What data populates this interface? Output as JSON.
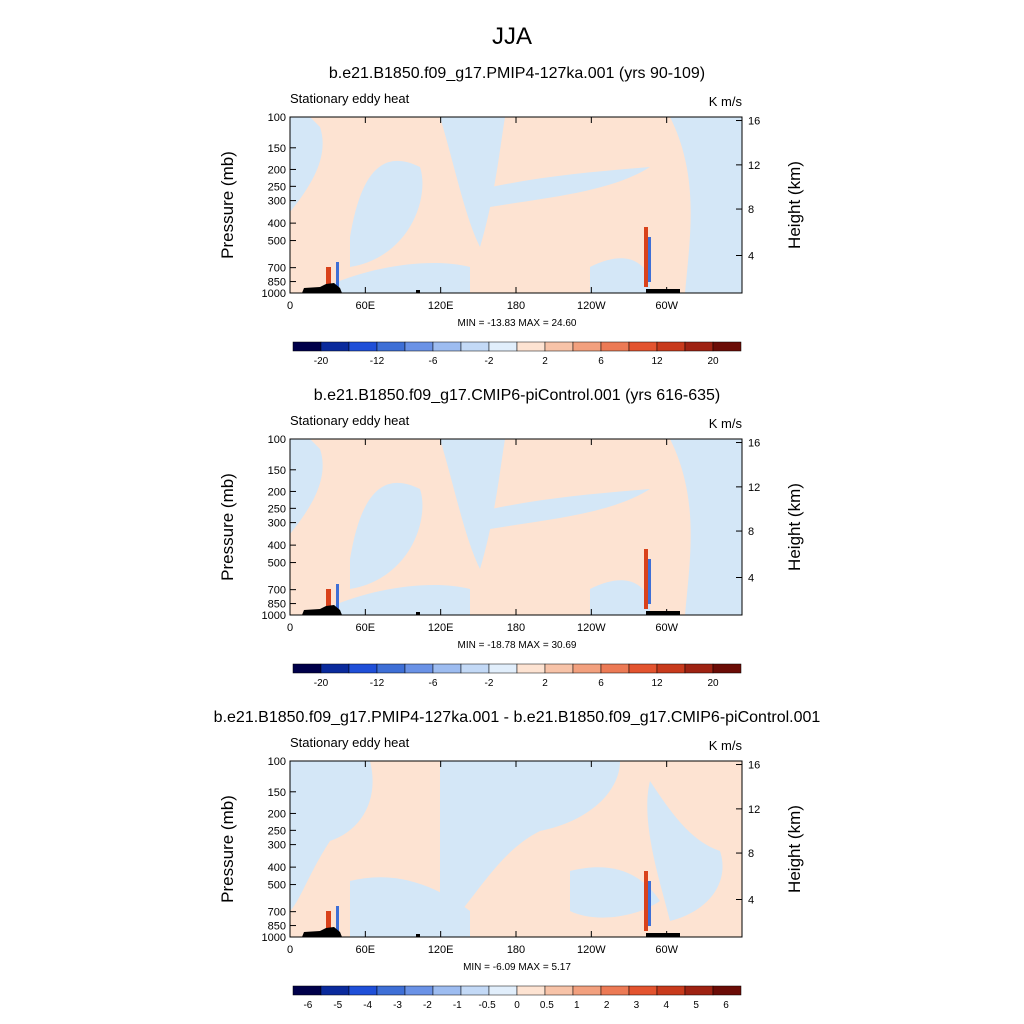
{
  "figure": {
    "title": "JJA"
  },
  "chart_data": [
    {
      "type": "heatmap",
      "title": "b.e21.B1850.f09_g17.PMIP4-127ka.001 (yrs 90-109)",
      "left_label": "Stationary eddy heat",
      "units": "K m/s",
      "ylabel": "Pressure (mb)",
      "ylabel_right": "Height (km)",
      "x_ticks": [
        "0",
        "60E",
        "120E",
        "180",
        "120W",
        "60W"
      ],
      "y_ticks": [
        "100",
        "150",
        "200",
        "250",
        "300",
        "400",
        "500",
        "700",
        "850",
        "1000"
      ],
      "y_ticks_right": [
        "4",
        "8",
        "12",
        "16"
      ],
      "stats": "MIN = -13.83  MAX =  24.60",
      "colorbar_labels": [
        "-20",
        "-12",
        "-6",
        "-2",
        "2",
        "6",
        "12",
        "20"
      ],
      "colors": {
        "background": "#fde3d2",
        "negative": "#d4e7f7",
        "positive_strong": "#d9421b",
        "negative_strong": "#3e6fd6",
        "terrain": "#000000"
      }
    },
    {
      "type": "heatmap",
      "title": "b.e21.B1850.f09_g17.CMIP6-piControl.001 (yrs 616-635)",
      "left_label": "Stationary eddy heat",
      "units": "K m/s",
      "ylabel": "Pressure (mb)",
      "ylabel_right": "Height (km)",
      "x_ticks": [
        "0",
        "60E",
        "120E",
        "180",
        "120W",
        "60W"
      ],
      "y_ticks": [
        "100",
        "150",
        "200",
        "250",
        "300",
        "400",
        "500",
        "700",
        "850",
        "1000"
      ],
      "y_ticks_right": [
        "4",
        "8",
        "12",
        "16"
      ],
      "stats": "MIN = -18.78  MAX =  30.69",
      "colorbar_labels": [
        "-20",
        "-12",
        "-6",
        "-2",
        "2",
        "6",
        "12",
        "20"
      ],
      "colors": {
        "background": "#fde3d2",
        "negative": "#d4e7f7",
        "positive_strong": "#d9421b",
        "negative_strong": "#3e6fd6",
        "terrain": "#000000"
      }
    },
    {
      "type": "heatmap",
      "title": "b.e21.B1850.f09_g17.PMIP4-127ka.001 - b.e21.B1850.f09_g17.CMIP6-piControl.001",
      "left_label": "Stationary eddy heat",
      "units": "K m/s",
      "ylabel": "Pressure (mb)",
      "ylabel_right": "Height (km)",
      "x_ticks": [
        "0",
        "60E",
        "120E",
        "180",
        "120W",
        "60W"
      ],
      "y_ticks": [
        "100",
        "150",
        "200",
        "250",
        "300",
        "400",
        "500",
        "700",
        "850",
        "1000"
      ],
      "y_ticks_right": [
        "4",
        "8",
        "12",
        "16"
      ],
      "stats": "MIN =  -6.09  MAX =   5.17",
      "colorbar_labels": [
        "-6",
        "-5",
        "-4",
        "-3",
        "-2",
        "-1",
        "-0.5",
        "0",
        "0.5",
        "1",
        "2",
        "3",
        "4",
        "5",
        "6"
      ],
      "colors": {
        "background": "#fde3d2",
        "negative": "#d4e7f7",
        "positive_strong": "#d9421b",
        "negative_strong": "#3e6fd6",
        "terrain": "#000000"
      }
    }
  ],
  "colorbars": {
    "absolute": [
      "#00004a",
      "#0a2a9c",
      "#1f4fd8",
      "#3e6fd6",
      "#6a92e6",
      "#9dbcf0",
      "#c3d9f6",
      "#e1eefb",
      "#fde3d2",
      "#f7c3a8",
      "#f2a07e",
      "#ec7a55",
      "#e3542f",
      "#c83a1c",
      "#9e2212",
      "#6b0c06"
    ],
    "difference": [
      "#00004a",
      "#0a2a9c",
      "#1f4fd8",
      "#3e6fd6",
      "#6a92e6",
      "#9dbcf0",
      "#c3d9f6",
      "#e1eefb",
      "#fde3d2",
      "#f7c3a8",
      "#f2a07e",
      "#ec7a55",
      "#e3542f",
      "#c83a1c",
      "#9e2212",
      "#6b0c06"
    ]
  }
}
